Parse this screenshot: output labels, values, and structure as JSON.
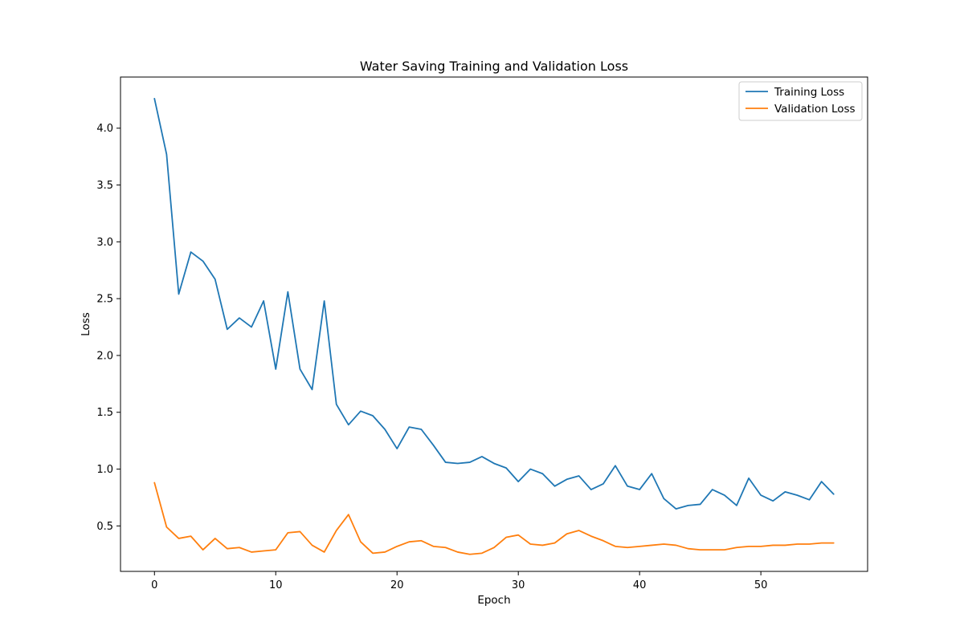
{
  "chart_data": {
    "type": "line",
    "title": "Water Saving Training and Validation Loss",
    "xlabel": "Epoch",
    "ylabel": "Loss",
    "xlim": [
      -2.8,
      58.8
    ],
    "ylim": [
      0.1,
      4.45
    ],
    "xticks": [
      0,
      10,
      20,
      30,
      40,
      50
    ],
    "yticks": [
      0.5,
      1.0,
      1.5,
      2.0,
      2.5,
      3.0,
      3.5,
      4.0
    ],
    "grid": false,
    "legend_position": "top-right",
    "x": [
      0,
      1,
      2,
      3,
      4,
      5,
      6,
      7,
      8,
      9,
      10,
      11,
      12,
      13,
      14,
      15,
      16,
      17,
      18,
      19,
      20,
      21,
      22,
      23,
      24,
      25,
      26,
      27,
      28,
      29,
      30,
      31,
      32,
      33,
      34,
      35,
      36,
      37,
      38,
      39,
      40,
      41,
      42,
      43,
      44,
      45,
      46,
      47,
      48,
      49,
      50,
      51,
      52,
      53,
      54,
      55,
      56
    ],
    "series": [
      {
        "name": "Training Loss",
        "color": "#1f77b4",
        "values": [
          4.26,
          3.77,
          2.54,
          2.91,
          2.83,
          2.67,
          2.23,
          2.33,
          2.25,
          2.48,
          1.88,
          2.56,
          1.88,
          1.7,
          2.48,
          1.57,
          1.39,
          1.51,
          1.47,
          1.35,
          1.18,
          1.37,
          1.35,
          1.21,
          1.06,
          1.05,
          1.06,
          1.11,
          1.05,
          1.01,
          0.89,
          1.0,
          0.96,
          0.85,
          0.91,
          0.94,
          0.82,
          0.87,
          1.03,
          0.85,
          0.82,
          0.96,
          0.74,
          0.65,
          0.68,
          0.69,
          0.82,
          0.77,
          0.68,
          0.92,
          0.77,
          0.72,
          0.8,
          0.77,
          0.73,
          0.89,
          0.78
        ]
      },
      {
        "name": "Validation Loss",
        "color": "#ff7f0e",
        "values": [
          0.88,
          0.49,
          0.39,
          0.41,
          0.29,
          0.39,
          0.3,
          0.31,
          0.27,
          0.28,
          0.29,
          0.44,
          0.45,
          0.33,
          0.27,
          0.46,
          0.6,
          0.36,
          0.26,
          0.27,
          0.32,
          0.36,
          0.37,
          0.32,
          0.31,
          0.27,
          0.25,
          0.26,
          0.31,
          0.4,
          0.42,
          0.34,
          0.33,
          0.35,
          0.43,
          0.46,
          0.41,
          0.37,
          0.32,
          0.31,
          0.32,
          0.33,
          0.34,
          0.33,
          0.3,
          0.29,
          0.29,
          0.29,
          0.31,
          0.32,
          0.32,
          0.33,
          0.33,
          0.34,
          0.34,
          0.35,
          0.35
        ]
      }
    ]
  }
}
